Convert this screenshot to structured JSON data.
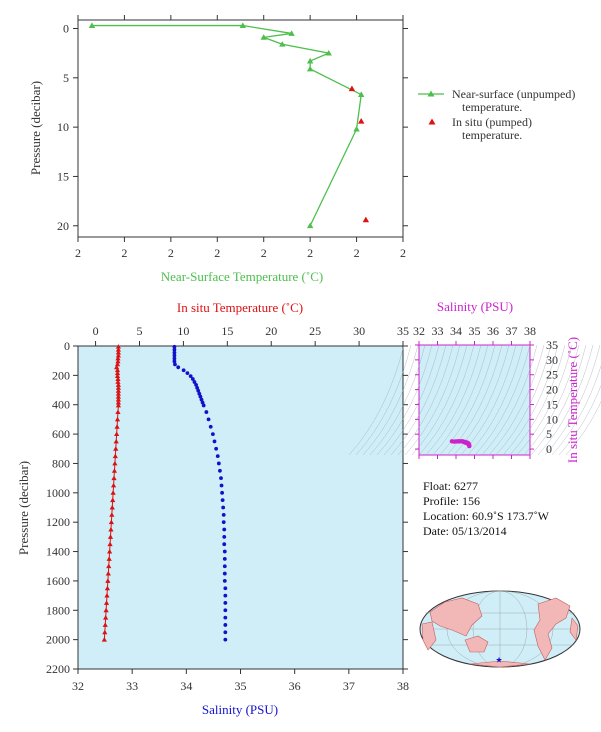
{
  "colors": {
    "near_surface": "#4cbf4c",
    "in_situ_temp": "#dd1111",
    "salinity": "#1111cc",
    "ts_axis": "#cc22cc",
    "plot_bg": "#cfeef7",
    "ink": "#333333"
  },
  "info": {
    "float": "Float:  6277",
    "profile": "Profile:  156",
    "location": "Location:  60.9˚S  173.7˚W",
    "date": "Date:  05/13/2014"
  },
  "footer_text": "",
  "chart_data": [
    {
      "type": "line",
      "id": "near-surface",
      "xlabel": "Near-Surface Temperature (˚C)",
      "ylabel": "Pressure (decibar)",
      "x_tick_labels": [
        "2",
        "2",
        "2",
        "2",
        "2",
        "2",
        "2",
        "2"
      ],
      "y_ticks": [
        0,
        5,
        10,
        15,
        20
      ],
      "ylim": [
        0,
        22
      ],
      "xlim": [
        0,
        7
      ],
      "series": [
        {
          "name": "Near-surface (unpumped)\ntemperature.",
          "legend_lines": [
            "Near-surface (unpumped)",
            "temperature."
          ],
          "marker": "triangle-line",
          "points": [
            {
              "x": 0.3,
              "y": -0.3
            },
            {
              "x": 3.55,
              "y": -0.3
            },
            {
              "x": 4.6,
              "y": 0.5
            },
            {
              "x": 4.0,
              "y": 0.9
            },
            {
              "x": 4.4,
              "y": 1.6
            },
            {
              "x": 5.4,
              "y": 2.5
            },
            {
              "x": 5.0,
              "y": 3.3
            },
            {
              "x": 5.0,
              "y": 4.1
            },
            {
              "x": 6.1,
              "y": 6.7
            },
            {
              "x": 6.0,
              "y": 10.2
            },
            {
              "x": 5.0,
              "y": 20.0
            }
          ]
        },
        {
          "name": "In situ (pumped)\ntemperature.",
          "legend_lines": [
            "In situ (pumped)",
            "temperature."
          ],
          "marker": "triangle",
          "points": [
            {
              "x": 5.9,
              "y": 6.1
            },
            {
              "x": 6.1,
              "y": 9.4
            },
            {
              "x": 6.2,
              "y": 19.4
            }
          ]
        }
      ]
    },
    {
      "type": "scatter",
      "id": "profile",
      "ylabel": "Pressure (decibar)",
      "y_ticks": [
        0,
        200,
        400,
        600,
        800,
        1000,
        1200,
        1400,
        1600,
        1800,
        2000,
        2200
      ],
      "ylim": [
        0,
        2200
      ],
      "x_bottom": {
        "label": "Salinity (PSU)",
        "range": [
          32,
          38
        ],
        "ticks": [
          32,
          33,
          34,
          35,
          36,
          37,
          38
        ]
      },
      "x_top": {
        "label": "In situ Temperature (˚C)",
        "range": [
          -2,
          35
        ],
        "ticks": [
          0,
          5,
          10,
          15,
          20,
          25,
          30,
          35
        ]
      },
      "temperature": [
        {
          "p": 5,
          "t": 2.6
        },
        {
          "p": 25,
          "t": 2.6
        },
        {
          "p": 45,
          "t": 2.6
        },
        {
          "p": 65,
          "t": 2.6
        },
        {
          "p": 85,
          "t": 2.55
        },
        {
          "p": 105,
          "t": 2.55
        },
        {
          "p": 125,
          "t": 2.5
        },
        {
          "p": 145,
          "t": 2.4
        },
        {
          "p": 165,
          "t": 2.5
        },
        {
          "p": 185,
          "t": 2.5
        },
        {
          "p": 205,
          "t": 2.5
        },
        {
          "p": 225,
          "t": 2.55
        },
        {
          "p": 245,
          "t": 2.55
        },
        {
          "p": 265,
          "t": 2.6
        },
        {
          "p": 285,
          "t": 2.6
        },
        {
          "p": 305,
          "t": 2.6
        },
        {
          "p": 325,
          "t": 2.6
        },
        {
          "p": 345,
          "t": 2.6
        },
        {
          "p": 365,
          "t": 2.6
        },
        {
          "p": 385,
          "t": 2.6
        },
        {
          "p": 405,
          "t": 2.6
        },
        {
          "p": 450,
          "t": 2.55
        },
        {
          "p": 500,
          "t": 2.5
        },
        {
          "p": 550,
          "t": 2.45
        },
        {
          "p": 600,
          "t": 2.4
        },
        {
          "p": 650,
          "t": 2.35
        },
        {
          "p": 700,
          "t": 2.3
        },
        {
          "p": 750,
          "t": 2.25
        },
        {
          "p": 800,
          "t": 2.2
        },
        {
          "p": 850,
          "t": 2.15
        },
        {
          "p": 900,
          "t": 2.1
        },
        {
          "p": 950,
          "t": 2.05
        },
        {
          "p": 1000,
          "t": 2.0
        },
        {
          "p": 1050,
          "t": 1.95
        },
        {
          "p": 1100,
          "t": 1.9
        },
        {
          "p": 1150,
          "t": 1.85
        },
        {
          "p": 1200,
          "t": 1.8
        },
        {
          "p": 1250,
          "t": 1.75
        },
        {
          "p": 1300,
          "t": 1.7
        },
        {
          "p": 1350,
          "t": 1.65
        },
        {
          "p": 1400,
          "t": 1.6
        },
        {
          "p": 1450,
          "t": 1.55
        },
        {
          "p": 1500,
          "t": 1.5
        },
        {
          "p": 1550,
          "t": 1.45
        },
        {
          "p": 1600,
          "t": 1.4
        },
        {
          "p": 1650,
          "t": 1.35
        },
        {
          "p": 1700,
          "t": 1.3
        },
        {
          "p": 1750,
          "t": 1.25
        },
        {
          "p": 1800,
          "t": 1.2
        },
        {
          "p": 1850,
          "t": 1.15
        },
        {
          "p": 1900,
          "t": 1.1
        },
        {
          "p": 1950,
          "t": 1.05
        },
        {
          "p": 2000,
          "t": 1.0
        }
      ],
      "salinity": [
        {
          "p": 5,
          "s": 33.78
        },
        {
          "p": 25,
          "s": 33.78
        },
        {
          "p": 45,
          "s": 33.78
        },
        {
          "p": 65,
          "s": 33.78
        },
        {
          "p": 85,
          "s": 33.78
        },
        {
          "p": 105,
          "s": 33.78
        },
        {
          "p": 125,
          "s": 33.79
        },
        {
          "p": 145,
          "s": 33.85
        },
        {
          "p": 165,
          "s": 33.95
        },
        {
          "p": 185,
          "s": 34.02
        },
        {
          "p": 205,
          "s": 34.08
        },
        {
          "p": 225,
          "s": 34.12
        },
        {
          "p": 245,
          "s": 34.15
        },
        {
          "p": 265,
          "s": 34.18
        },
        {
          "p": 285,
          "s": 34.2
        },
        {
          "p": 305,
          "s": 34.22
        },
        {
          "p": 325,
          "s": 34.24
        },
        {
          "p": 345,
          "s": 34.26
        },
        {
          "p": 365,
          "s": 34.28
        },
        {
          "p": 385,
          "s": 34.3
        },
        {
          "p": 405,
          "s": 34.32
        },
        {
          "p": 450,
          "s": 34.37
        },
        {
          "p": 500,
          "s": 34.41
        },
        {
          "p": 550,
          "s": 34.45
        },
        {
          "p": 600,
          "s": 34.49
        },
        {
          "p": 650,
          "s": 34.52
        },
        {
          "p": 700,
          "s": 34.55
        },
        {
          "p": 750,
          "s": 34.58
        },
        {
          "p": 800,
          "s": 34.6
        },
        {
          "p": 850,
          "s": 34.62
        },
        {
          "p": 900,
          "s": 34.64
        },
        {
          "p": 950,
          "s": 34.65
        },
        {
          "p": 1000,
          "s": 34.66
        },
        {
          "p": 1050,
          "s": 34.67
        },
        {
          "p": 1100,
          "s": 34.68
        },
        {
          "p": 1150,
          "s": 34.69
        },
        {
          "p": 1200,
          "s": 34.69
        },
        {
          "p": 1250,
          "s": 34.7
        },
        {
          "p": 1300,
          "s": 34.7
        },
        {
          "p": 1350,
          "s": 34.7
        },
        {
          "p": 1400,
          "s": 34.71
        },
        {
          "p": 1450,
          "s": 34.71
        },
        {
          "p": 1500,
          "s": 34.71
        },
        {
          "p": 1550,
          "s": 34.71
        },
        {
          "p": 1600,
          "s": 34.71
        },
        {
          "p": 1650,
          "s": 34.72
        },
        {
          "p": 1700,
          "s": 34.72
        },
        {
          "p": 1750,
          "s": 34.72
        },
        {
          "p": 1800,
          "s": 34.72
        },
        {
          "p": 1850,
          "s": 34.72
        },
        {
          "p": 1900,
          "s": 34.72
        },
        {
          "p": 1950,
          "s": 34.72
        },
        {
          "p": 2000,
          "s": 34.72
        }
      ]
    },
    {
      "type": "scatter",
      "id": "ts-diagram",
      "xlabel": "Salinity (PSU)",
      "ylabel": "In situ Temperature (˚C)",
      "x_ticks": [
        32,
        33,
        34,
        35,
        36,
        37,
        38
      ],
      "y_ticks": [
        0,
        5,
        10,
        15,
        20,
        25,
        30,
        35
      ],
      "xlim": [
        32,
        38
      ],
      "ylim": [
        -2,
        35
      ],
      "points": [
        {
          "s": 33.78,
          "t": 2.6
        },
        {
          "s": 33.9,
          "t": 2.5
        },
        {
          "s": 34.0,
          "t": 2.55
        },
        {
          "s": 34.1,
          "t": 2.6
        },
        {
          "s": 34.2,
          "t": 2.6
        },
        {
          "s": 34.3,
          "t": 2.6
        },
        {
          "s": 34.4,
          "t": 2.5
        },
        {
          "s": 34.5,
          "t": 2.4
        },
        {
          "s": 34.6,
          "t": 2.2
        },
        {
          "s": 34.65,
          "t": 2.0
        },
        {
          "s": 34.7,
          "t": 1.7
        },
        {
          "s": 34.72,
          "t": 1.2
        },
        {
          "s": 34.72,
          "t": 1.0
        },
        {
          "s": 34.15,
          "t": 2.55
        },
        {
          "s": 34.35,
          "t": 2.6
        }
      ]
    }
  ]
}
